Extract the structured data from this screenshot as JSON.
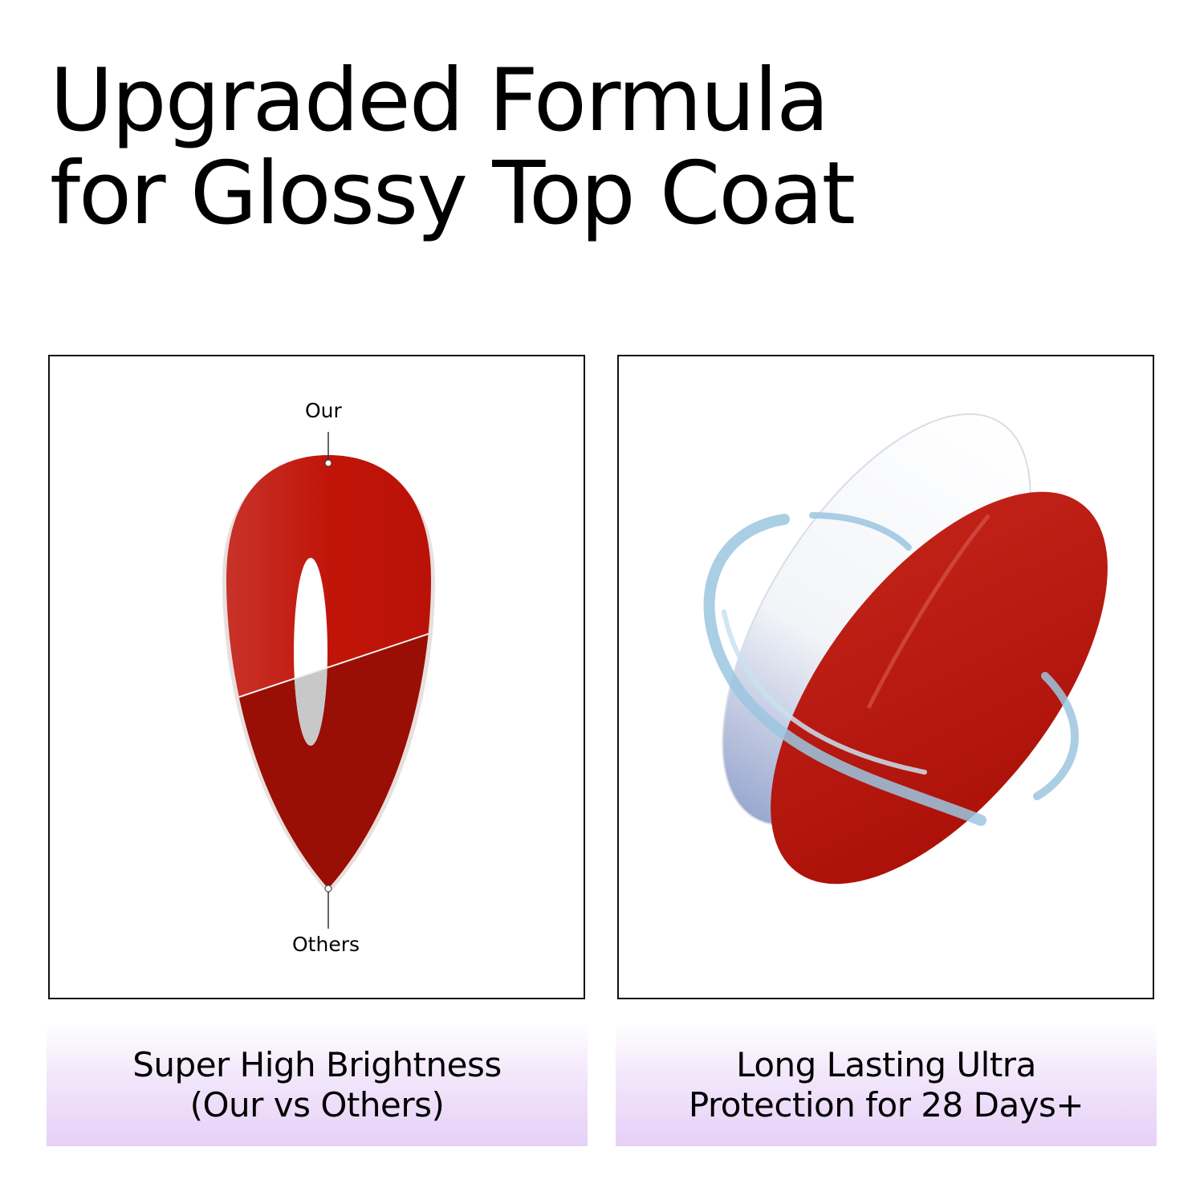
{
  "title": {
    "line1": "Upgraded Formula",
    "line2": "for Glossy Top Coat"
  },
  "left_panel": {
    "label_top": "Our",
    "label_bottom": "Others",
    "caption_line1": "Super High Brightness",
    "caption_line2": "(Our vs Others)"
  },
  "right_panel": {
    "caption_line1": "Long Lasting Ultra",
    "caption_line2": "Protection for 28 Days+"
  },
  "colors": {
    "nail_bright": "#c11408",
    "nail_dark": "#990e05",
    "caption_bg": "#e6d0f7",
    "water": "#9cc6e0"
  }
}
